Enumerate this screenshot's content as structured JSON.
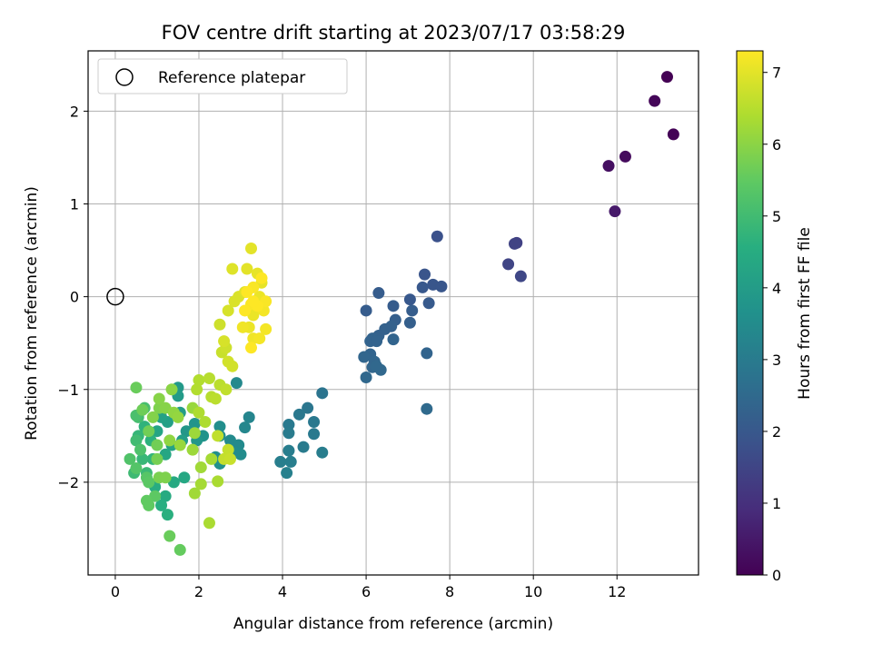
{
  "chart_data": {
    "type": "scatter",
    "title": "FOV centre drift starting at 2023/07/17 03:58:29",
    "xlabel": "Angular distance from reference (arcmin)",
    "ylabel": "Rotation from reference (arcmin)",
    "xlim": [
      -0.65,
      13.95
    ],
    "ylim": [
      -3.0,
      2.65
    ],
    "xticks": [
      0,
      2,
      4,
      6,
      8,
      10,
      12
    ],
    "yticks": [
      -2,
      -1,
      0,
      1,
      2
    ],
    "grid": true,
    "legend": {
      "location": "top-left",
      "entries": [
        "Reference platepar"
      ]
    },
    "reference_point": {
      "x": 0,
      "y": 0
    },
    "colorbar": {
      "label": "Hours from first FF file",
      "colormap": "viridis",
      "range": [
        0,
        7.3
      ],
      "ticks": [
        0,
        1,
        2,
        3,
        4,
        5,
        6,
        7
      ]
    },
    "points": [
      [
        13.2,
        2.37,
        0.0
      ],
      [
        13.35,
        1.75,
        0.05
      ],
      [
        12.9,
        2.11,
        0.1
      ],
      [
        12.2,
        1.51,
        0.2
      ],
      [
        11.8,
        1.41,
        0.3
      ],
      [
        11.95,
        0.92,
        0.5
      ],
      [
        9.6,
        0.58,
        1.4
      ],
      [
        9.55,
        0.57,
        1.45
      ],
      [
        9.4,
        0.35,
        1.5
      ],
      [
        9.7,
        0.22,
        1.55
      ],
      [
        7.7,
        0.65,
        1.8
      ],
      [
        7.4,
        0.24,
        1.9
      ],
      [
        7.6,
        0.13,
        1.95
      ],
      [
        7.8,
        0.11,
        1.95
      ],
      [
        7.35,
        0.1,
        2.0
      ],
      [
        7.05,
        -0.03,
        2.0
      ],
      [
        7.5,
        -0.07,
        2.05
      ],
      [
        6.3,
        0.04,
        2.1
      ],
      [
        6.65,
        -0.1,
        2.1
      ],
      [
        6.0,
        -0.15,
        2.1
      ],
      [
        7.1,
        -0.15,
        2.15
      ],
      [
        6.7,
        -0.25,
        2.2
      ],
      [
        7.05,
        -0.28,
        2.2
      ],
      [
        6.6,
        -0.32,
        2.25
      ],
      [
        6.45,
        -0.35,
        2.25
      ],
      [
        6.3,
        -0.42,
        2.25
      ],
      [
        6.15,
        -0.45,
        2.3
      ],
      [
        6.1,
        -0.48,
        2.3
      ],
      [
        6.25,
        -0.48,
        2.3
      ],
      [
        6.65,
        -0.46,
        2.35
      ],
      [
        7.45,
        -0.61,
        2.35
      ],
      [
        6.1,
        -0.62,
        2.35
      ],
      [
        5.95,
        -0.65,
        2.4
      ],
      [
        6.2,
        -0.7,
        2.4
      ],
      [
        6.15,
        -0.76,
        2.4
      ],
      [
        6.35,
        -0.79,
        2.45
      ],
      [
        6.0,
        -0.87,
        2.45
      ],
      [
        6.25,
        -0.75,
        2.45
      ],
      [
        7.45,
        -1.21,
        2.5
      ],
      [
        4.95,
        -1.04,
        2.8
      ],
      [
        4.6,
        -1.2,
        2.85
      ],
      [
        4.4,
        -1.27,
        2.9
      ],
      [
        4.75,
        -1.35,
        2.9
      ],
      [
        4.15,
        -1.38,
        2.95
      ],
      [
        4.75,
        -1.48,
        2.95
      ],
      [
        4.15,
        -1.47,
        3.0
      ],
      [
        4.5,
        -1.62,
        3.0
      ],
      [
        4.95,
        -1.68,
        3.05
      ],
      [
        4.15,
        -1.66,
        3.05
      ],
      [
        3.95,
        -1.78,
        3.1
      ],
      [
        4.2,
        -1.78,
        3.1
      ],
      [
        4.1,
        -1.9,
        3.15
      ],
      [
        3.2,
        -1.3,
        3.3
      ],
      [
        3.1,
        -1.41,
        3.35
      ],
      [
        2.9,
        -0.93,
        3.4
      ],
      [
        2.75,
        -1.55,
        3.45
      ],
      [
        2.95,
        -1.6,
        3.45
      ],
      [
        2.85,
        -1.68,
        3.5
      ],
      [
        3.0,
        -1.7,
        3.5
      ],
      [
        2.5,
        -1.4,
        3.55
      ],
      [
        2.5,
        -1.5,
        3.6
      ],
      [
        2.4,
        -1.73,
        3.6
      ],
      [
        2.5,
        -1.8,
        3.65
      ],
      [
        2.1,
        -1.5,
        3.7
      ],
      [
        1.9,
        -1.37,
        3.75
      ],
      [
        1.95,
        -1.55,
        3.8
      ],
      [
        1.7,
        -1.45,
        3.85
      ],
      [
        1.5,
        -0.98,
        3.9
      ],
      [
        1.5,
        -1.07,
        3.95
      ],
      [
        1.55,
        -1.25,
        4.0
      ],
      [
        1.6,
        -1.55,
        4.05
      ],
      [
        1.25,
        -1.35,
        4.1
      ],
      [
        1.1,
        -1.3,
        4.15
      ],
      [
        1.35,
        -1.6,
        4.2
      ],
      [
        1.0,
        -1.45,
        4.25
      ],
      [
        1.2,
        -1.7,
        4.3
      ],
      [
        1.65,
        -1.95,
        4.35
      ],
      [
        1.4,
        -2.0,
        4.4
      ],
      [
        1.2,
        -2.15,
        4.45
      ],
      [
        0.95,
        -2.05,
        4.5
      ],
      [
        1.1,
        -2.25,
        4.55
      ],
      [
        1.25,
        -2.35,
        4.6
      ],
      [
        0.85,
        -1.55,
        4.65
      ],
      [
        0.7,
        -1.4,
        4.7
      ],
      [
        0.9,
        -1.75,
        4.75
      ],
      [
        0.55,
        -1.5,
        4.8
      ],
      [
        0.65,
        -1.75,
        4.85
      ],
      [
        0.75,
        -1.9,
        4.9
      ],
      [
        0.45,
        -1.9,
        4.95
      ],
      [
        0.5,
        -1.55,
        5.0
      ],
      [
        0.55,
        -1.3,
        5.05
      ],
      [
        0.7,
        -1.2,
        5.1
      ],
      [
        0.5,
        -1.28,
        5.15
      ],
      [
        0.6,
        -1.65,
        5.2
      ],
      [
        0.35,
        -1.75,
        5.25
      ],
      [
        0.5,
        -1.85,
        5.3
      ],
      [
        0.75,
        -1.95,
        5.35
      ],
      [
        0.8,
        -2.0,
        5.4
      ],
      [
        0.95,
        -2.15,
        5.45
      ],
      [
        0.75,
        -2.2,
        5.5
      ],
      [
        0.8,
        -2.25,
        5.5
      ],
      [
        1.55,
        -2.73,
        5.55
      ],
      [
        1.3,
        -2.58,
        5.6
      ],
      [
        0.5,
        -0.98,
        5.6
      ],
      [
        0.65,
        -1.22,
        5.65
      ],
      [
        0.8,
        -1.45,
        5.7
      ],
      [
        1.0,
        -1.6,
        5.7
      ],
      [
        1.0,
        -1.75,
        5.75
      ],
      [
        1.05,
        -1.95,
        5.8
      ],
      [
        1.2,
        -1.95,
        5.85
      ],
      [
        1.05,
        -1.2,
        5.85
      ],
      [
        0.9,
        -1.3,
        5.9
      ],
      [
        1.05,
        -1.1,
        5.95
      ],
      [
        1.2,
        -1.2,
        5.95
      ],
      [
        1.35,
        -1.0,
        6.0
      ],
      [
        1.4,
        -1.25,
        6.05
      ],
      [
        1.3,
        -1.55,
        6.05
      ],
      [
        1.5,
        -1.3,
        6.1
      ],
      [
        1.55,
        -1.6,
        6.15
      ],
      [
        1.85,
        -1.2,
        6.15
      ],
      [
        1.9,
        -1.47,
        6.2
      ],
      [
        1.85,
        -1.65,
        6.2
      ],
      [
        1.9,
        -2.12,
        6.25
      ],
      [
        2.05,
        -1.84,
        6.25
      ],
      [
        2.3,
        -1.75,
        6.3
      ],
      [
        2.05,
        -2.02,
        6.3
      ],
      [
        2.45,
        -1.99,
        6.35
      ],
      [
        2.25,
        -2.44,
        6.35
      ],
      [
        2.0,
        -1.25,
        6.4
      ],
      [
        2.15,
        -1.35,
        6.4
      ],
      [
        1.95,
        -1.0,
        6.45
      ],
      [
        2.0,
        -0.9,
        6.45
      ],
      [
        2.25,
        -0.88,
        6.5
      ],
      [
        2.3,
        -1.08,
        6.5
      ],
      [
        2.4,
        -1.1,
        6.55
      ],
      [
        2.5,
        -0.95,
        6.55
      ],
      [
        2.65,
        -1.0,
        6.6
      ],
      [
        2.45,
        -1.5,
        6.6
      ],
      [
        2.7,
        -1.65,
        6.65
      ],
      [
        2.6,
        -1.75,
        6.65
      ],
      [
        2.75,
        -1.75,
        6.7
      ],
      [
        2.55,
        -0.6,
        6.7
      ],
      [
        2.65,
        -0.55,
        6.75
      ],
      [
        2.5,
        -0.3,
        6.75
      ],
      [
        2.7,
        -0.7,
        6.8
      ],
      [
        2.8,
        -0.75,
        6.8
      ],
      [
        2.6,
        -0.48,
        6.85
      ],
      [
        2.7,
        -0.15,
        6.85
      ],
      [
        2.85,
        -0.05,
        6.9
      ],
      [
        2.95,
        0.0,
        6.9
      ],
      [
        2.8,
        0.3,
        6.95
      ],
      [
        3.1,
        0.05,
        6.95
      ],
      [
        3.15,
        0.3,
        7.0
      ],
      [
        3.25,
        0.52,
        7.0
      ],
      [
        3.4,
        0.25,
        7.05
      ],
      [
        3.5,
        0.15,
        7.05
      ],
      [
        3.45,
        0.0,
        7.1
      ],
      [
        3.3,
        -0.2,
        7.1
      ],
      [
        3.2,
        -0.33,
        7.1
      ],
      [
        3.05,
        -0.33,
        7.15
      ],
      [
        3.3,
        -0.45,
        7.15
      ],
      [
        3.45,
        -0.45,
        7.2
      ],
      [
        3.6,
        -0.35,
        7.2
      ],
      [
        3.55,
        -0.15,
        7.2
      ],
      [
        3.6,
        -0.05,
        7.25
      ],
      [
        3.3,
        0.1,
        7.25
      ],
      [
        3.25,
        -0.08,
        7.25
      ],
      [
        3.15,
        0.05,
        7.3
      ],
      [
        3.4,
        -0.1,
        7.3
      ],
      [
        3.1,
        -0.15,
        7.3
      ],
      [
        3.25,
        -0.55,
        7.3
      ],
      [
        3.5,
        0.2,
        7.3
      ],
      [
        3.3,
        -0.05,
        7.3
      ]
    ]
  }
}
